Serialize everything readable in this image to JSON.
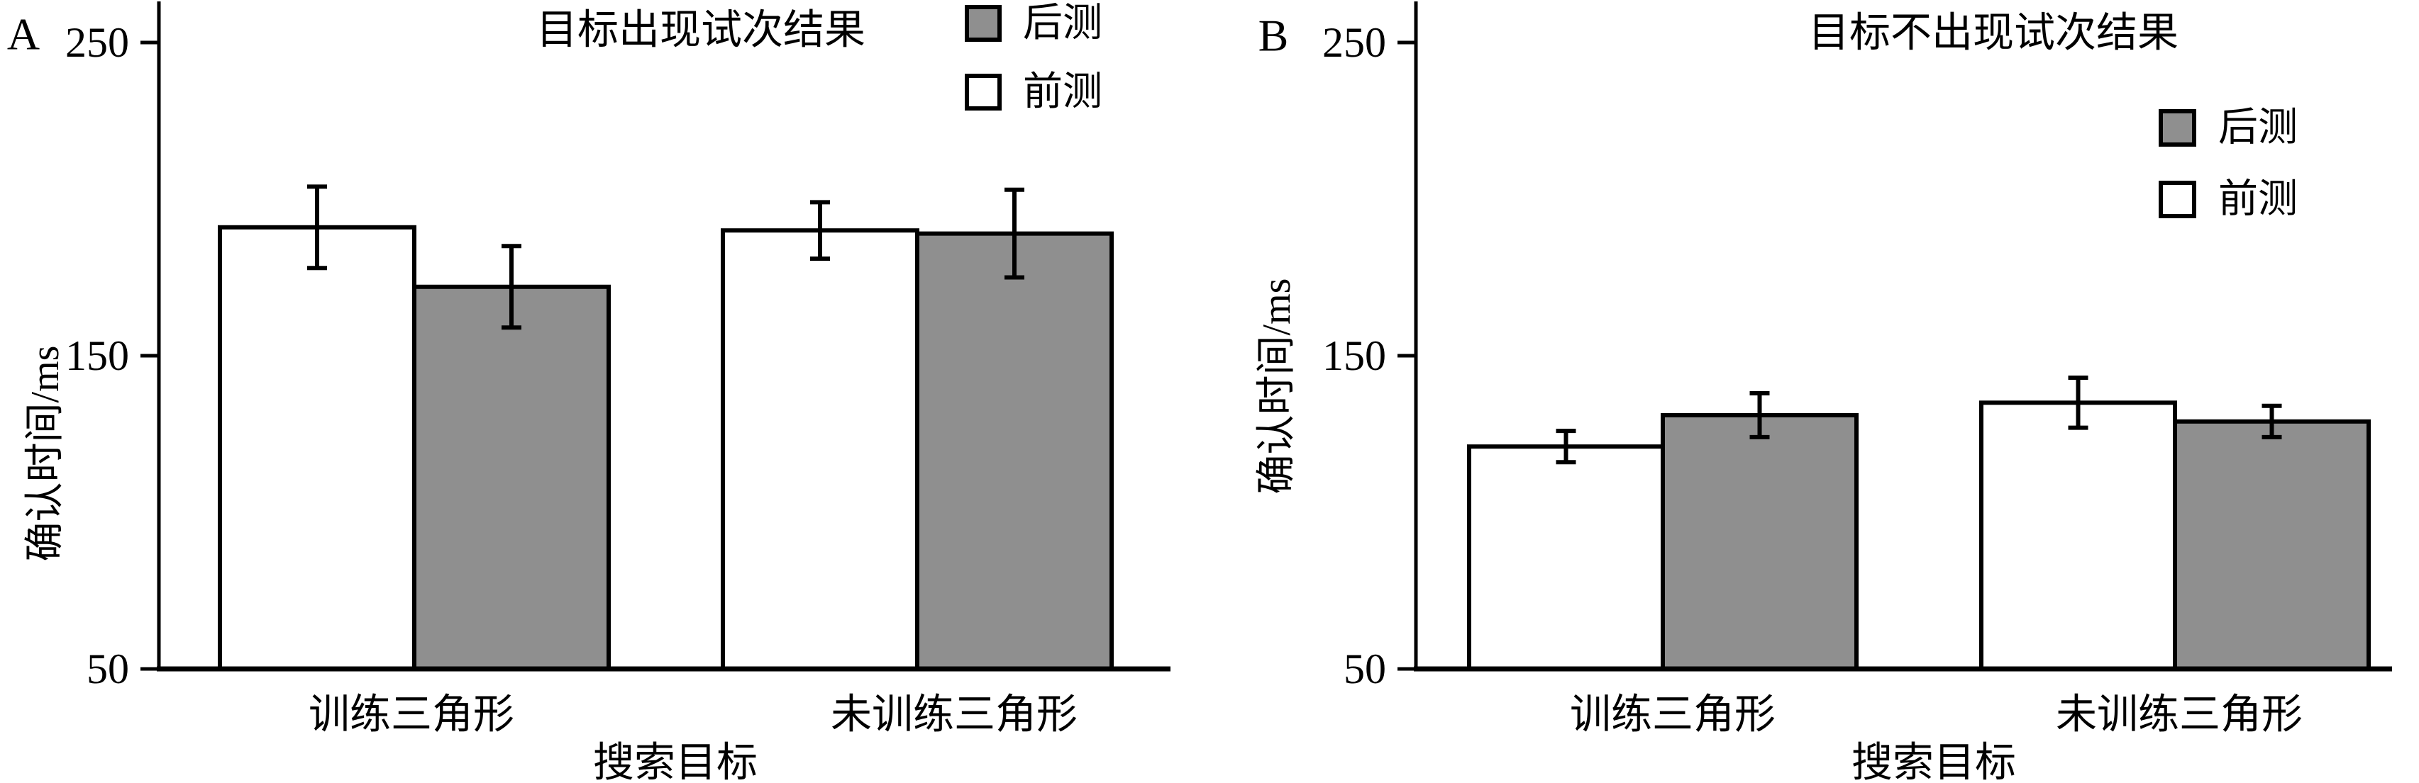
{
  "figure": {
    "background": "#ffffff",
    "ink_color": "#000000",
    "pretest_fill": "#ffffff",
    "posttest_fill": "#8f8f8f"
  },
  "chart_data": [
    {
      "type": "bar",
      "panel_label": "A",
      "title": "目标出现试次结果",
      "xlabel": "搜索目标",
      "ylabel": "确认时间/ms",
      "categories": [
        "训练三角形",
        "未训练三角形"
      ],
      "series": [
        {
          "name": "前测",
          "fill": "#ffffff",
          "values": [
            191,
            190
          ],
          "errors": [
            13,
            9
          ]
        },
        {
          "name": "后测",
          "fill": "#8f8f8f",
          "values": [
            172,
            189
          ],
          "errors": [
            13,
            14
          ]
        }
      ],
      "legend_order": [
        "后测",
        "前测"
      ],
      "legend_position": "top-right",
      "ylim": [
        50,
        250
      ],
      "yticks": [
        250,
        150,
        50
      ],
      "grid": false
    },
    {
      "type": "bar",
      "panel_label": "B",
      "title": "目标不出现试次结果",
      "xlabel": "搜索目标",
      "ylabel": "确认时间/ms",
      "categories": [
        "训练三角形",
        "未训练三角形"
      ],
      "series": [
        {
          "name": "前测",
          "fill": "#ffffff",
          "values": [
            121,
            135
          ],
          "errors": [
            5,
            8
          ]
        },
        {
          "name": "后测",
          "fill": "#8f8f8f",
          "values": [
            131,
            129
          ],
          "errors": [
            7,
            5
          ]
        }
      ],
      "legend_order": [
        "后测",
        "前测"
      ],
      "legend_position": "top-right",
      "ylim": [
        50,
        250
      ],
      "yticks": [
        250,
        150,
        50
      ],
      "grid": false
    }
  ]
}
